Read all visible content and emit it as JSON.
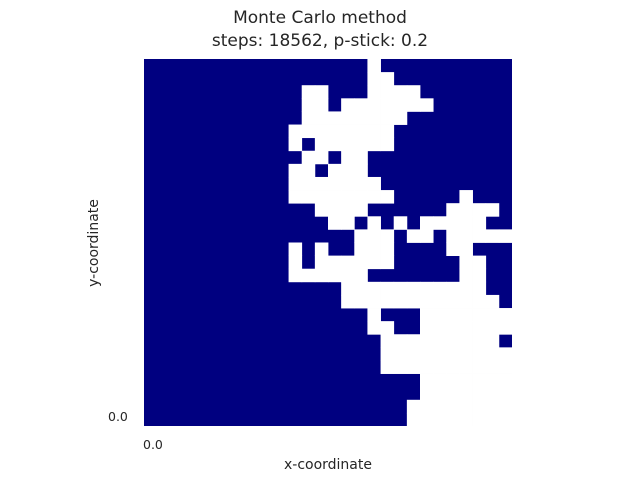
{
  "title_line1": "Monte Carlo method",
  "title_line2": "steps: 18562, p-stick: 0.2",
  "chart_data": {
    "type": "heatmap",
    "title": "Monte Carlo method\nsteps: 18562, p-stick: 0.2",
    "xlabel": "x-coordinate",
    "ylabel": "y-coordinate",
    "xticks": [
      "0.0"
    ],
    "yticks": [
      "0.0"
    ],
    "grid": false,
    "colors": {
      "occupied": "#ffffff",
      "empty": "#000080"
    },
    "rows_top_to_bottom": [
      "0000000000000000010000000000",
      "0000000000000000011000000000",
      "0000000000001100011110000000",
      "0000000000001101111111000000",
      "0000000000001111111100000000",
      "0000000000011111111000000000",
      "0000000000010111111000000000",
      "0000000000001101100000000000",
      "0000000000011011100000000000",
      "0000000000011111110000000000",
      "0000000000011111111000001000",
      "0000000000000111100000011110",
      "0000000000000011010101111100",
      "0000000000000000111011011111",
      "0000000000010100111000011000",
      "0000000000010111111000001100",
      "0000000000011111100000001100",
      "0000000000000001111111111100",
      "0000000000000001111111111110",
      "0000000000000000010001111111",
      "0000000000000000011001111111",
      "0000000000000000001111111110",
      "0000000000000000001111111111",
      "0000000000000000001111111111",
      "0000000000000000000001111111",
      "0000000000000000000001111111",
      "0000000000000000000011111111",
      "0000000000000000000011111111"
    ]
  }
}
